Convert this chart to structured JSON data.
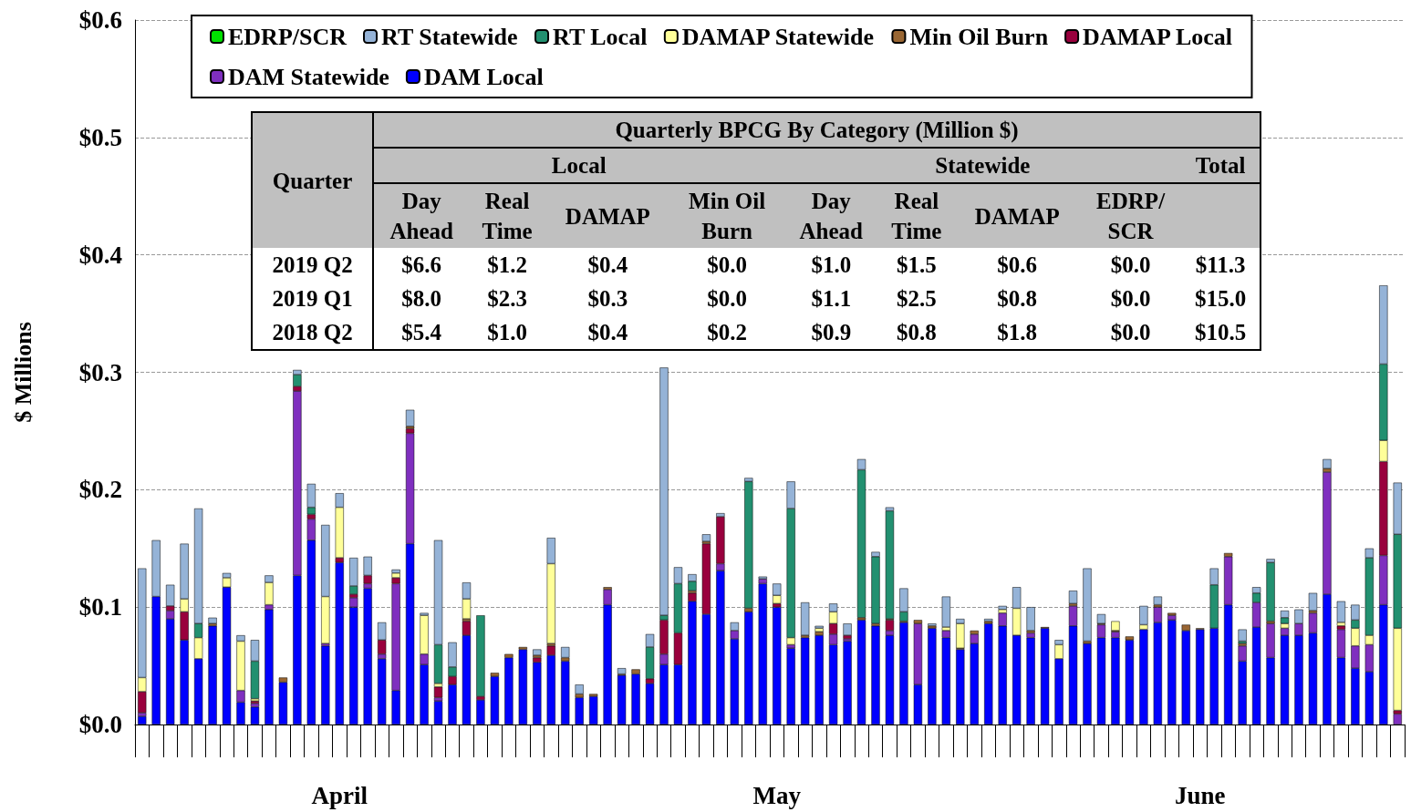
{
  "chart_data": {
    "type": "bar",
    "stacked": true,
    "ylabel": "$ Millions",
    "categories": [
      null,
      null,
      null,
      null,
      null,
      null,
      null,
      null,
      null,
      null,
      null,
      null,
      null,
      null,
      "April",
      null,
      null,
      null,
      null,
      null,
      null,
      null,
      null,
      null,
      null,
      null,
      null,
      null,
      null,
      null,
      null,
      null,
      null,
      null,
      null,
      null,
      null,
      null,
      null,
      null,
      null,
      null,
      null,
      null,
      null,
      "May",
      null,
      null,
      null,
      null,
      null,
      null,
      null,
      null,
      null,
      null,
      null,
      null,
      null,
      null,
      null,
      null,
      null,
      null,
      null,
      null,
      null,
      null,
      null,
      null,
      null,
      null,
      null,
      null,
      null,
      "June",
      null,
      null,
      null,
      null,
      null,
      null,
      null,
      null,
      null,
      null,
      null,
      null,
      null,
      null
    ],
    "ylim": [
      0,
      0.6
    ],
    "yticks": [
      {
        "value": 0,
        "label": "$0.0"
      },
      {
        "value": 0.1,
        "label": "$0.1"
      },
      {
        "value": 0.2,
        "label": "$0.2"
      },
      {
        "value": 0.3,
        "label": "$0.3"
      },
      {
        "value": 0.4,
        "label": "$0.4"
      },
      {
        "value": 0.5,
        "label": "$0.5"
      },
      {
        "value": 0.6,
        "label": "$0.6"
      }
    ],
    "grid": "y",
    "legend": "top",
    "series": [
      {
        "name": "DAM Local",
        "color": "#0000ff",
        "values": [
          0.007,
          0.109,
          0.09,
          0.072,
          0.056,
          0.084,
          0.117,
          0.019,
          0.015,
          0.098,
          0.036,
          0.127,
          0.157,
          0.067,
          0.138,
          0.1,
          0.116,
          0.056,
          0.029,
          0.154,
          0.051,
          0.02,
          0.034,
          0.076,
          0.021,
          0.041,
          0.057,
          0.064,
          0.053,
          0.059,
          0.054,
          0.023,
          0.024,
          0.102,
          0.042,
          0.043,
          0.035,
          0.051,
          0.051,
          0.105,
          0.094,
          0.131,
          0.073,
          0.096,
          0.12,
          0.1,
          0.065,
          0.074,
          0.076,
          0.068,
          0.071,
          0.089,
          0.084,
          0.076,
          0.087,
          0.034,
          0.082,
          0.074,
          0.064,
          0.069,
          0.086,
          0.084,
          0.076,
          0.074,
          0.082,
          0.056,
          0.084,
          0.069,
          0.074,
          0.074,
          0.072,
          0.081,
          0.087,
          0.089,
          0.08,
          0.081,
          0.082,
          0.102,
          0.054,
          0.083,
          0.057,
          0.076,
          0.076,
          0.078,
          0.111,
          0.057,
          0.048,
          0.045,
          0.102,
          0
        ]
      },
      {
        "name": "DAM Statewide",
        "color": "#7f2fbf",
        "values": [
          0.003,
          0,
          0.007,
          0,
          0,
          0,
          0,
          0.01,
          0.003,
          0.004,
          0,
          0.157,
          0.018,
          0.002,
          0,
          0.008,
          0.004,
          0.004,
          0.091,
          0.094,
          0.009,
          0.003,
          0,
          0,
          0,
          0,
          0,
          0,
          0,
          0,
          0,
          0,
          0,
          0.013,
          0,
          0,
          0,
          0.009,
          0,
          0,
          0,
          0.006,
          0.007,
          0,
          0.004,
          0,
          0.003,
          0,
          0,
          0.009,
          0.002,
          0,
          0,
          0.004,
          0,
          0.052,
          0,
          0.006,
          0,
          0.008,
          0,
          0.011,
          0,
          0.004,
          0,
          0,
          0.017,
          0,
          0.011,
          0.005,
          0,
          0,
          0.013,
          0.004,
          0,
          0,
          0,
          0.041,
          0.013,
          0.021,
          0.029,
          0.006,
          0.01,
          0.017,
          0.104,
          0.024,
          0.019,
          0.023,
          0.042,
          0.009
        ]
      },
      {
        "name": "DAMAP Local",
        "color": "#99003d",
        "values": [
          0.018,
          0,
          0.004,
          0.024,
          0,
          0,
          0,
          0,
          0.002,
          0,
          0,
          0.004,
          0.004,
          0,
          0.004,
          0.003,
          0.007,
          0.012,
          0.005,
          0.004,
          0,
          0.009,
          0.007,
          0.012,
          0.003,
          0,
          0,
          0,
          0.004,
          0.008,
          0,
          0,
          0,
          0,
          0,
          0,
          0.004,
          0.029,
          0.027,
          0.007,
          0.06,
          0.04,
          0,
          0,
          0,
          0.003,
          0,
          0,
          0,
          0.009,
          0.003,
          0,
          0,
          0.009,
          0,
          0,
          0,
          0,
          0,
          0,
          0,
          0,
          0,
          0,
          0,
          0,
          0,
          0,
          0,
          0,
          0,
          0,
          0,
          0,
          0,
          0,
          0,
          0,
          0,
          0,
          0,
          0,
          0,
          0,
          0,
          0.003,
          0,
          0,
          0.08,
          0.003
        ]
      },
      {
        "name": "Min Oil Burn",
        "color": "#996633",
        "values": [
          0,
          0,
          0,
          0,
          0,
          0.002,
          0,
          0,
          0,
          0,
          0.004,
          0,
          0,
          0,
          0,
          0,
          0,
          0,
          0,
          0.002,
          0,
          0,
          0,
          0.002,
          0,
          0.003,
          0.003,
          0.002,
          0.002,
          0.002,
          0.003,
          0.003,
          0.002,
          0.002,
          0.001,
          0.004,
          0,
          0,
          0,
          0.002,
          0.002,
          0,
          0,
          0.003,
          0,
          0,
          0,
          0.002,
          0.003,
          0,
          0,
          0.002,
          0.002,
          0.001,
          0.001,
          0.003,
          0.002,
          0,
          0.001,
          0.003,
          0.002,
          0,
          0,
          0.002,
          0.001,
          0,
          0.002,
          0.002,
          0.001,
          0.001,
          0.003,
          0,
          0.002,
          0.002,
          0.005,
          0.001,
          0,
          0.003,
          0.002,
          0,
          0.002,
          0,
          0,
          0.002,
          0.003,
          0,
          0,
          0,
          0,
          0
        ]
      },
      {
        "name": "DAMAP Statewide",
        "color": "#ffff99",
        "values": [
          0.012,
          0,
          0,
          0.011,
          0.018,
          0,
          0.008,
          0.042,
          0.002,
          0.019,
          0,
          0,
          0,
          0.04,
          0.043,
          0,
          0,
          0,
          0.004,
          0,
          0.033,
          0.003,
          0,
          0.017,
          0,
          0,
          0,
          0,
          0,
          0.068,
          0,
          0,
          0,
          0,
          0,
          0,
          0,
          0,
          0,
          0,
          0,
          0,
          0,
          0,
          0,
          0.007,
          0.006,
          0,
          0.003,
          0.01,
          0,
          0,
          0,
          0,
          0,
          0,
          0,
          0.003,
          0.021,
          0,
          0,
          0.003,
          0.023,
          0,
          0,
          0.012,
          0,
          0,
          0,
          0.008,
          0,
          0.004,
          0,
          0,
          0,
          0,
          0,
          0,
          0,
          0,
          0,
          0.004,
          0,
          0,
          0,
          0.003,
          0.015,
          0.008,
          0.018,
          0.07
        ]
      },
      {
        "name": "RT Local",
        "color": "#229070",
        "values": [
          0,
          0,
          0,
          0,
          0.012,
          0,
          0,
          0,
          0.032,
          0,
          0,
          0.01,
          0.006,
          0,
          0,
          0.007,
          0,
          0,
          0,
          0,
          0,
          0.033,
          0.008,
          0,
          0.069,
          0,
          0,
          0,
          0,
          0,
          0,
          0,
          0,
          0,
          0,
          0,
          0.027,
          0.004,
          0.042,
          0.008,
          0,
          0,
          0,
          0.108,
          0,
          0,
          0.11,
          0,
          0,
          0,
          0,
          0.126,
          0.057,
          0.092,
          0.008,
          0,
          0,
          0,
          0,
          0,
          0,
          0,
          0,
          0,
          0,
          0,
          0,
          0,
          0,
          0,
          0,
          0,
          0,
          0,
          0,
          0,
          0.037,
          0,
          0.002,
          0.008,
          0.05,
          0.005,
          0,
          0,
          0,
          0,
          0.007,
          0.066,
          0.065,
          0.08
        ]
      },
      {
        "name": "RT Statewide",
        "color": "#95b3d7",
        "values": [
          0.093,
          0.048,
          0.018,
          0.047,
          0.098,
          0.005,
          0.004,
          0.005,
          0.018,
          0.006,
          null,
          0.004,
          0.02,
          0.061,
          0.012,
          0.024,
          0.016,
          0.015,
          0.003,
          0.014,
          0.002,
          0.089,
          0.021,
          0.014,
          0,
          0,
          0,
          0,
          0.005,
          0.022,
          0.009,
          0.008,
          0,
          0,
          0.005,
          0,
          0.011,
          0.211,
          0.014,
          0.006,
          0.006,
          0.003,
          0.007,
          0.003,
          0.002,
          0.01,
          0.023,
          0.028,
          0.002,
          0.007,
          0.01,
          0.009,
          0.004,
          0.003,
          0.02,
          0,
          0.002,
          0.026,
          0.004,
          0,
          0.002,
          0.003,
          0.018,
          0.02,
          0,
          0.004,
          0.011,
          0.062,
          0.008,
          null,
          0,
          0.016,
          0.007,
          0,
          0,
          0,
          0.014,
          0,
          0.01,
          0.005,
          0.003,
          0.006,
          0.012,
          0.015,
          0.008,
          0.018,
          0.013,
          0.008,
          0.067,
          0.044
        ]
      },
      {
        "name": "EDRP/SCR",
        "color": "#00e000",
        "values": [
          0,
          0,
          0,
          0,
          0,
          0,
          0,
          0,
          0,
          0,
          0,
          0,
          0,
          0,
          0,
          0,
          0,
          0,
          0,
          0,
          0,
          0,
          0,
          0,
          0,
          0,
          0,
          0,
          0,
          0,
          0,
          0,
          0,
          0,
          0,
          0,
          0,
          0,
          0,
          0,
          0,
          0,
          0,
          0,
          0,
          0,
          0,
          0,
          0,
          0,
          0,
          0,
          0,
          0,
          0,
          0,
          0,
          0,
          0,
          0,
          0,
          0,
          0,
          0,
          0,
          0,
          0,
          0,
          0,
          0,
          0,
          0,
          0,
          0,
          0,
          0,
          0,
          0,
          0,
          0,
          0,
          0,
          0,
          0,
          0,
          0,
          0,
          0,
          0,
          0
        ]
      }
    ],
    "annotations": [
      "Quarterly BPCG By Category (Million $)",
      "Quarter",
      "Local",
      "Statewide",
      "Total",
      "Day\nAhead",
      "Real\nTime",
      "DAMAP",
      "Min Oil\nBurn",
      "Day\nAhead",
      "Real\nTime",
      "DAMAP",
      "EDRP/\nSCR",
      "2019 Q2",
      "$6.6",
      "$1.2",
      "$0.4",
      "$0.0",
      "$1.0",
      "$1.5",
      "$0.6",
      "$0.0",
      "$11.3",
      "2019 Q1",
      "$8.0",
      "$2.3",
      "$0.3",
      "$0.0",
      "$1.1",
      "$2.5",
      "$0.8",
      "$0.0",
      "$15.0",
      "2018 Q2",
      "$5.4",
      "$1.0",
      "$0.4",
      "$0.2",
      "$0.9",
      "$0.8",
      "$1.8",
      "$0.0",
      "$10.5"
    ]
  }
}
